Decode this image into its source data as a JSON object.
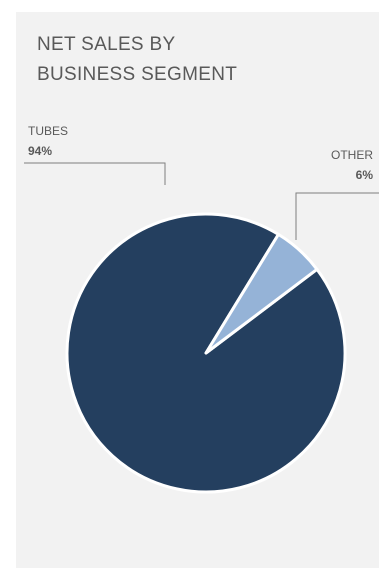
{
  "chart_data": {
    "type": "pie",
    "title_lines": [
      "NET SALES BY",
      "BUSINESS SEGMENT"
    ],
    "slices": [
      {
        "label": "TUBES",
        "value": 94,
        "display": "94%",
        "color": "#243f5f"
      },
      {
        "label": "OTHER",
        "value": 6,
        "display": "6%",
        "color": "#95b3d7"
      }
    ]
  }
}
